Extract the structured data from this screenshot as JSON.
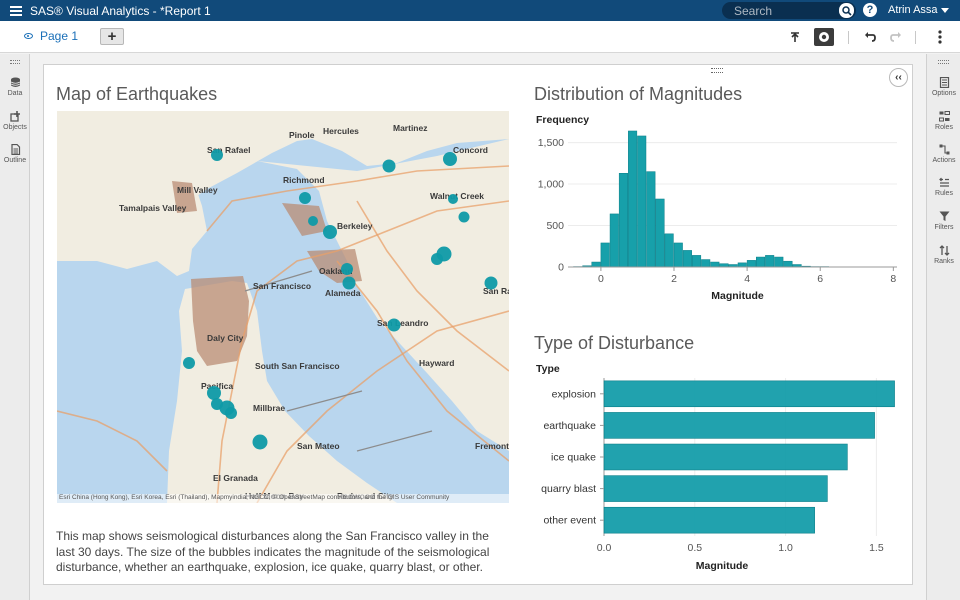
{
  "app": {
    "title": "SAS® Visual Analytics - *Report 1",
    "search_placeholder": "Search",
    "user_name": "Atrin Assa",
    "help_glyph": "?"
  },
  "tabs": {
    "page_label": "Page 1",
    "add_label": "+"
  },
  "left_panel": {
    "items": [
      {
        "label": "Data",
        "icon": "database-icon"
      },
      {
        "label": "Objects",
        "icon": "objects-icon"
      },
      {
        "label": "Outline",
        "icon": "outline-icon"
      }
    ]
  },
  "right_panel": {
    "items": [
      {
        "label": "Options",
        "icon": "options-icon"
      },
      {
        "label": "Roles",
        "icon": "roles-icon"
      },
      {
        "label": "Actions",
        "icon": "actions-icon"
      },
      {
        "label": "Rules",
        "icon": "rules-icon"
      },
      {
        "label": "Filters",
        "icon": "filters-icon"
      },
      {
        "label": "Ranks",
        "icon": "ranks-icon"
      }
    ]
  },
  "map": {
    "title": "Map of Earthquakes",
    "attribution": "Esri China (Hong Kong), Esri Korea, Esri (Thailand), Mapmyindia, NGCC, © OpenStreetMap contributors, and the GIS User Community",
    "description": "This map shows seismological disturbances along the San Francisco valley in the last 30 days. The size of the bubbles indicates the magnitude of the seismological disturbance, whether an earthquake, explosion, ice quake, quarry blast, or other.",
    "place_labels": [
      "San Rafael",
      "Pinole",
      "Hercules",
      "Martinez",
      "Concord",
      "Richmond",
      "Walnut Creek",
      "Mill Valley",
      "Tamalpais Valley",
      "Berkeley",
      "Oakland",
      "Alameda",
      "San Francisco",
      "San Leandro",
      "Daly City",
      "South San Francisco",
      "Pacifica",
      "Millbrae",
      "Hayward",
      "San Mateo",
      "El Granada",
      "Half Moon Bay",
      "Redwood City",
      "Fremont",
      "San Ramon"
    ],
    "colors": {
      "water": "#b9d6ee",
      "land": "#f1ede1",
      "urban": "#b98c74",
      "bubble": "#0e9aa7"
    }
  },
  "chart_data": [
    {
      "type": "bar",
      "title": "Distribution of Magnitudes",
      "xlabel": "Magnitude",
      "ylabel": "Frequency",
      "xlim": [
        -0.9,
        8.1
      ],
      "ylim": [
        0,
        1700
      ],
      "xticks": [
        0,
        2,
        4,
        6,
        8
      ],
      "yticks": [
        0,
        500,
        1000,
        1500
      ],
      "ytick_labels": [
        "0",
        "500",
        "1,000",
        "1,500"
      ],
      "bin_width": 0.25,
      "bin_starts": [
        -0.75,
        -0.5,
        -0.25,
        0,
        0.25,
        0.5,
        0.75,
        1,
        1.25,
        1.5,
        1.75,
        2,
        2.25,
        2.5,
        2.75,
        3,
        3.25,
        3.5,
        3.75,
        4,
        4.25,
        4.5,
        4.75,
        5,
        5.25,
        5.5,
        5.75,
        6,
        6.25,
        6.5,
        6.75,
        7,
        7.25,
        7.5,
        7.75
      ],
      "values": [
        5,
        15,
        60,
        290,
        640,
        1130,
        1640,
        1580,
        1150,
        820,
        400,
        290,
        200,
        140,
        90,
        60,
        40,
        30,
        50,
        80,
        120,
        140,
        120,
        70,
        30,
        10,
        5,
        5,
        3,
        3,
        2,
        2,
        2,
        1,
        1
      ],
      "color": "#17a0aa"
    },
    {
      "type": "bar",
      "orientation": "horizontal",
      "title": "Type of Disturbance",
      "ylabel": "Type",
      "xlabel": "Magnitude",
      "categories": [
        "explosion",
        "earthquake",
        "ice quake",
        "quarry blast",
        "other event"
      ],
      "values": [
        1.6,
        1.49,
        1.34,
        1.23,
        1.16
      ],
      "xlim": [
        0,
        1.63
      ],
      "xticks": [
        0.0,
        0.5,
        1.0,
        1.5
      ],
      "xtick_labels": [
        "0.0",
        "0.5",
        "1.0",
        "1.5"
      ],
      "color": "#0e9aa7"
    }
  ]
}
